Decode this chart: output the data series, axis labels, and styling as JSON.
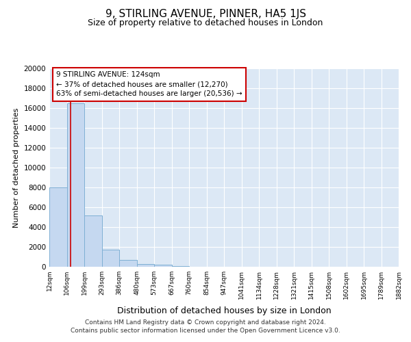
{
  "title": "9, STIRLING AVENUE, PINNER, HA5 1JS",
  "subtitle": "Size of property relative to detached houses in London",
  "xlabel": "Distribution of detached houses by size in London",
  "ylabel": "Number of detached properties",
  "bar_values": [
    8000,
    16500,
    5200,
    1750,
    700,
    300,
    200,
    100,
    0,
    0,
    0,
    0,
    0,
    0,
    0,
    0,
    0,
    0,
    0,
    0
  ],
  "bin_edges": [
    12,
    106,
    199,
    293,
    386,
    480,
    573,
    667,
    760,
    854,
    947,
    1041,
    1134,
    1228,
    1321,
    1415,
    1508,
    1602,
    1695,
    1789,
    1882
  ],
  "tick_labels": [
    "12sqm",
    "106sqm",
    "199sqm",
    "293sqm",
    "386sqm",
    "480sqm",
    "573sqm",
    "667sqm",
    "760sqm",
    "854sqm",
    "947sqm",
    "1041sqm",
    "1134sqm",
    "1228sqm",
    "1321sqm",
    "1415sqm",
    "1508sqm",
    "1602sqm",
    "1695sqm",
    "1789sqm",
    "1882sqm"
  ],
  "bar_color": "#c5d8f0",
  "bar_edge_color": "#7eafd4",
  "property_size": 124,
  "vline_color": "#cc0000",
  "annotation_line1": "9 STIRLING AVENUE: 124sqm",
  "annotation_line2": "← 37% of detached houses are smaller (12,270)",
  "annotation_line3": "63% of semi-detached houses are larger (20,536) →",
  "annotation_box_color": "#ffffff",
  "annotation_box_edge": "#cc0000",
  "ylim": [
    0,
    20000
  ],
  "yticks": [
    0,
    2000,
    4000,
    6000,
    8000,
    10000,
    12000,
    14000,
    16000,
    18000,
    20000
  ],
  "plot_bg_color": "#dce8f5",
  "fig_bg_color": "#ffffff",
  "grid_color": "#ffffff",
  "footer_line1": "Contains HM Land Registry data © Crown copyright and database right 2024.",
  "footer_line2": "Contains public sector information licensed under the Open Government Licence v3.0."
}
